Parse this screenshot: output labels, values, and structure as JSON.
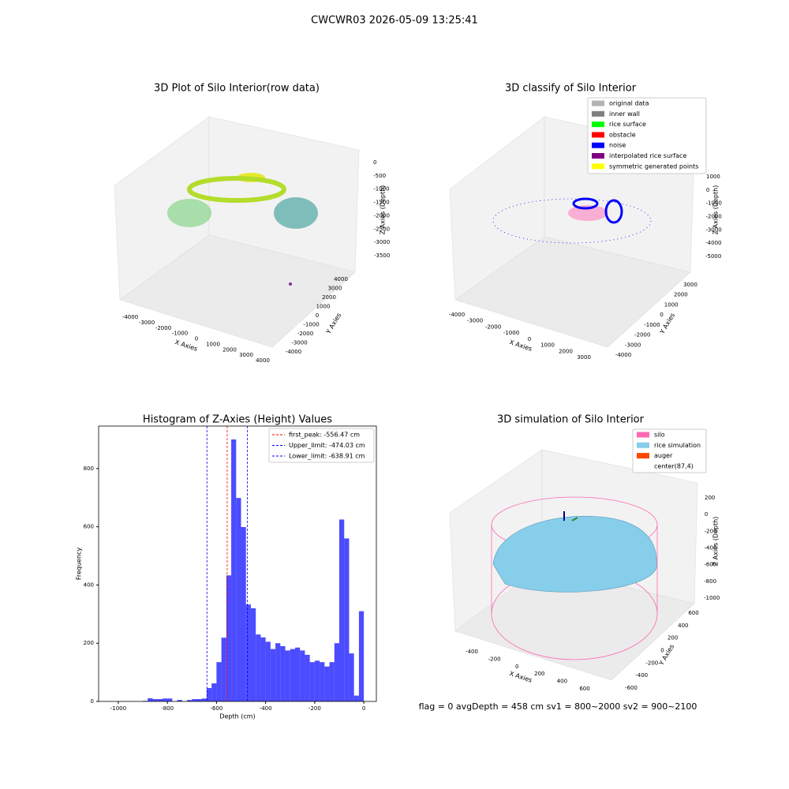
{
  "title": "CWCWR03 2026-05-09 13:25:41",
  "chart_data": [
    {
      "type": "scatter3d",
      "title": "3D Plot of Silo Interior(row data)",
      "xlabel": "X Axies",
      "ylabel": "Y Axies",
      "zlabel": "Z Axies (Depth)",
      "xticks": [
        -4000,
        -3000,
        -2000,
        -1000,
        0,
        1000,
        2000,
        3000,
        4000
      ],
      "yticks": [
        -4000,
        -3000,
        -2000,
        -1000,
        0,
        1000,
        2000,
        3000,
        4000
      ],
      "zticks": [
        0,
        -500,
        -1000,
        -1500,
        -2000,
        -2500,
        -3000,
        -3500
      ]
    },
    {
      "type": "scatter3d",
      "title": "3D classify of Silo Interior",
      "xlabel": "X Axies",
      "ylabel": "Y Axies",
      "zlabel": "Z Axies (Depth)",
      "xticks": [
        -4000,
        -3000,
        -2000,
        -1000,
        0,
        1000,
        2000,
        3000
      ],
      "yticks": [
        -4000,
        -3000,
        -2000,
        -1000,
        0,
        1000,
        2000,
        3000
      ],
      "zticks": [
        1000,
        0,
        -1000,
        -2000,
        -3000,
        -4000,
        -5000
      ],
      "legend": [
        {
          "name": "original data",
          "color": "#b3b3b3"
        },
        {
          "name": "inner wall",
          "color": "#808080"
        },
        {
          "name": "rice surface",
          "color": "#00ff00"
        },
        {
          "name": "obstacle",
          "color": "#ff0000"
        },
        {
          "name": "noise",
          "color": "#0000ff"
        },
        {
          "name": "interpolated rice surface",
          "color": "#800080"
        },
        {
          "name": "symmetric generated points",
          "color": "#ffff00"
        }
      ]
    },
    {
      "type": "histogram",
      "title": "Histogram of Z-Axies (Height) Values",
      "xlabel": "Depth (cm)",
      "ylabel": "Frequency",
      "color": "#0000ff",
      "bins": [
        -900,
        -880,
        -860,
        -840,
        -820,
        -800,
        -780,
        -760,
        -740,
        -720,
        -700,
        -680,
        -660,
        -640,
        -620,
        -600,
        -580,
        -560,
        -540,
        -520,
        -500,
        -480,
        -460,
        -440,
        -420,
        -400,
        -380,
        -360,
        -340,
        -320,
        -300,
        -280,
        -260,
        -240,
        -220,
        -200,
        -180,
        -160,
        -140,
        -120,
        -100,
        -80,
        -60,
        -40,
        -20,
        0
      ],
      "values": [
        2,
        11,
        8,
        8,
        10,
        10,
        0,
        5,
        0,
        5,
        8,
        8,
        10,
        46,
        62,
        135,
        219,
        433,
        900,
        699,
        599,
        333,
        320,
        230,
        220,
        205,
        180,
        200,
        190,
        175,
        180,
        185,
        175,
        160,
        135,
        140,
        135,
        120,
        135,
        200,
        625,
        560,
        165,
        20,
        310
      ],
      "xlim": [
        -1080,
        51
      ],
      "ylim": [
        0,
        946
      ],
      "xticks": [
        -1000,
        -800,
        -600,
        -400,
        -200,
        0
      ],
      "yticks": [
        0,
        200,
        400,
        600,
        800
      ],
      "lines": [
        {
          "value": -556.47,
          "label": "first_peak: -556.47 cm",
          "color": "#ff0000"
        },
        {
          "value": -474.03,
          "label": "Upper_limit: -474.03 cm",
          "color": "#0000ff"
        },
        {
          "value": -638.91,
          "label": "Lower_limit: -638.91 cm",
          "color": "#0000ff"
        }
      ]
    },
    {
      "type": "surface3d",
      "title": "3D simulation of Silo Interior",
      "xlabel": "X Axies",
      "ylabel": "Y Axies",
      "zlabel": "Z Axies (Depth)",
      "xticks": [
        -400,
        -200,
        0,
        200,
        400,
        600
      ],
      "yticks": [
        -600,
        -400,
        -200,
        0,
        200,
        400,
        600
      ],
      "zticks": [
        200,
        0,
        -200,
        -400,
        -600,
        -800,
        -1000
      ],
      "legend": [
        {
          "name": "silo",
          "color": "#ff69b4"
        },
        {
          "name": "rice simulation",
          "color": "#87ceeb"
        },
        {
          "name": "auger",
          "color": "#ff4500"
        },
        {
          "name": "center(87,4)",
          "color": "#ffffff"
        }
      ]
    }
  ],
  "footer": "flag = 0     avgDepth = 458 cm  sv1 = 800~2000  sv2 = 900~2100"
}
